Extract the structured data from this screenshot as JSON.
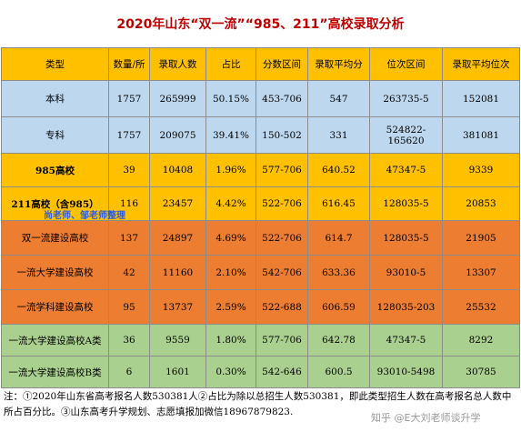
{
  "header": {
    "title": "2020年山东“双一流”“985、211”高校录取分析"
  },
  "table": {
    "columns": [
      "类型",
      "数量/所",
      "录取人数",
      "占比",
      "分数区间",
      "录取平均分",
      "位次区间",
      "录取平均位次"
    ],
    "rows": [
      [
        "本科",
        "1757",
        "265999",
        "50.15%",
        "453-706",
        "547",
        "263735-5",
        "152081"
      ],
      [
        "专科",
        "1757",
        "209075",
        "39.41%",
        "150-502",
        "331",
        "524822-165620",
        "381081"
      ],
      [
        "985高校",
        "39",
        "10408",
        "1.96%",
        "577-706",
        "640.52",
        "47347-5",
        "9339"
      ],
      [
        "211高校（含985）",
        "116",
        "23457",
        "4.42%",
        "522-706",
        "616.45",
        "128035-5",
        "20853"
      ],
      [
        "双一流建设高校",
        "137",
        "24897",
        "4.69%",
        "522-706",
        "614.7",
        "128035-5",
        "21905"
      ],
      [
        "一流大学建设高校",
        "42",
        "11160",
        "2.10%",
        "542-706",
        "633.36",
        "93010-5",
        "13307"
      ],
      [
        "一流学科建设高校",
        "95",
        "13737",
        "2.59%",
        "522-688",
        "606.59",
        "128035-203",
        "25532"
      ],
      [
        "一流大学建设高校A类",
        "36",
        "9559",
        "1.80%",
        "577-706",
        "642.78",
        "47347-5",
        "8292"
      ],
      [
        "一流大学建设高校B类",
        "6",
        "1601",
        "0.30%",
        "542-646",
        "600.5",
        "93010-5498",
        "30785"
      ]
    ]
  },
  "footnote": "注：①2020年山东省高考报名人数530381人②占比为除以总招生人数530381，即此类型招生人数在高考报名总人数中所占百分比。③山东高考升学规划、志愿填报加微信18967879823.",
  "watermarks": [
    "尚老师、邹老师整理",
    "知乎 @E大刘老师谈升学"
  ]
}
